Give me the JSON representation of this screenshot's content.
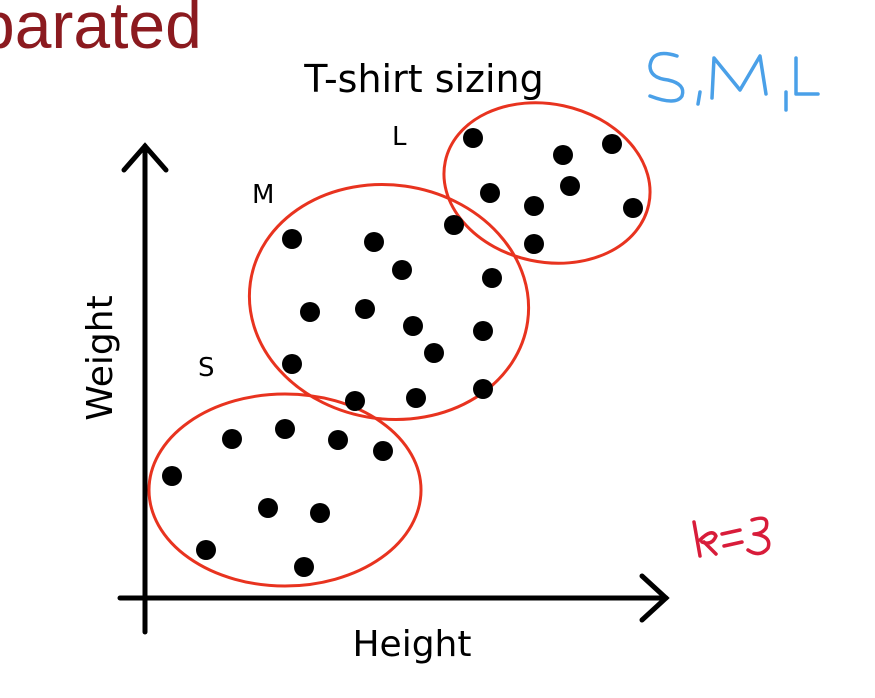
{
  "header_fragment": "parated",
  "title": "T-shirt sizing",
  "annotation_sizes": "S,M,L",
  "annotation_k": "k=3",
  "axes": {
    "x_label": "Height",
    "y_label": "Weight"
  },
  "clusters": [
    {
      "label": "S"
    },
    {
      "label": "M"
    },
    {
      "label": "L"
    }
  ],
  "colors": {
    "header": "#8b1a1f",
    "ellipse": "#e8331f",
    "blue_note": "#4aa0e8",
    "red_note": "#d81c3a",
    "ink": "#000000"
  }
}
